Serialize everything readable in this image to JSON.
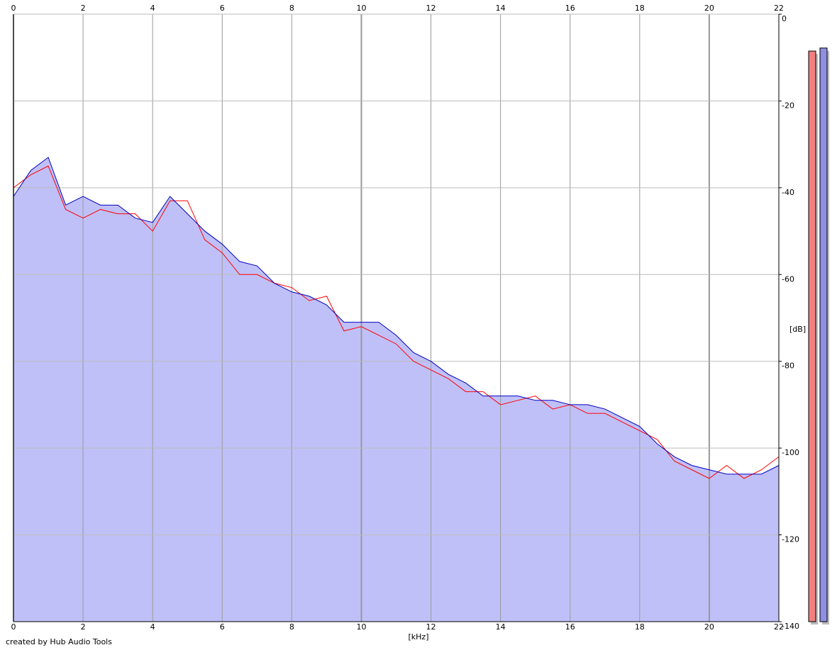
{
  "chart_data": {
    "type": "line",
    "x": [
      0,
      0.5,
      1,
      1.5,
      2,
      2.5,
      3,
      3.5,
      4,
      4.5,
      5,
      5.5,
      6,
      6.5,
      7,
      7.5,
      8,
      8.5,
      9,
      9.5,
      10,
      10.5,
      11,
      11.5,
      12,
      12.5,
      13,
      13.5,
      14,
      14.5,
      15,
      15.5,
      16,
      16.5,
      17,
      17.5,
      18,
      18.5,
      19,
      19.5,
      20,
      20.5,
      21,
      21.5,
      22
    ],
    "series": [
      {
        "color": "#ff0000",
        "values": [
          -40,
          -37,
          -35,
          -45,
          -47,
          -45,
          -46,
          -46,
          -50,
          -43,
          -43,
          -52,
          -55,
          -60,
          -60,
          -62,
          -63,
          -66,
          -65,
          -73,
          -72,
          -74,
          -76,
          -80,
          -82,
          -84,
          -87,
          -87,
          -90,
          -89,
          -88,
          -91,
          -90,
          -92,
          -92,
          -94,
          -96,
          -98,
          -103,
          -105,
          -107,
          -104,
          -107,
          -105,
          -102
        ]
      },
      {
        "color": "#0000c0",
        "fill": "#c0c0f8",
        "values": [
          -42,
          -36,
          -33,
          -44,
          -42,
          -44,
          -44,
          -47,
          -48,
          -42,
          -46,
          -50,
          -53,
          -57,
          -58,
          -62,
          -64,
          -65,
          -67,
          -71,
          -71,
          -71,
          -74,
          -78,
          -80,
          -83,
          -85,
          -88,
          -88,
          -88,
          -89,
          -89,
          -90,
          -90,
          -91,
          -93,
          -95,
          -99,
          -102,
          -104,
          -105,
          -106,
          -106,
          -106,
          -104
        ]
      }
    ],
    "xlim": [
      0,
      22
    ],
    "xticks": [
      0,
      2,
      4,
      6,
      8,
      10,
      12,
      14,
      16,
      18,
      20,
      22
    ],
    "ylim": [
      -140,
      0
    ],
    "yticks": [
      0,
      -20,
      -40,
      -60,
      -80,
      -100,
      -120,
      -140
    ],
    "x_label": "[kHz]",
    "y_label": "[dB]",
    "grid": true,
    "meters": [
      {
        "color": "#f08080",
        "value": -8.5
      },
      {
        "color": "#9090e0",
        "value": -7.8
      }
    ],
    "credit": "created by Hub Audio Tools"
  }
}
